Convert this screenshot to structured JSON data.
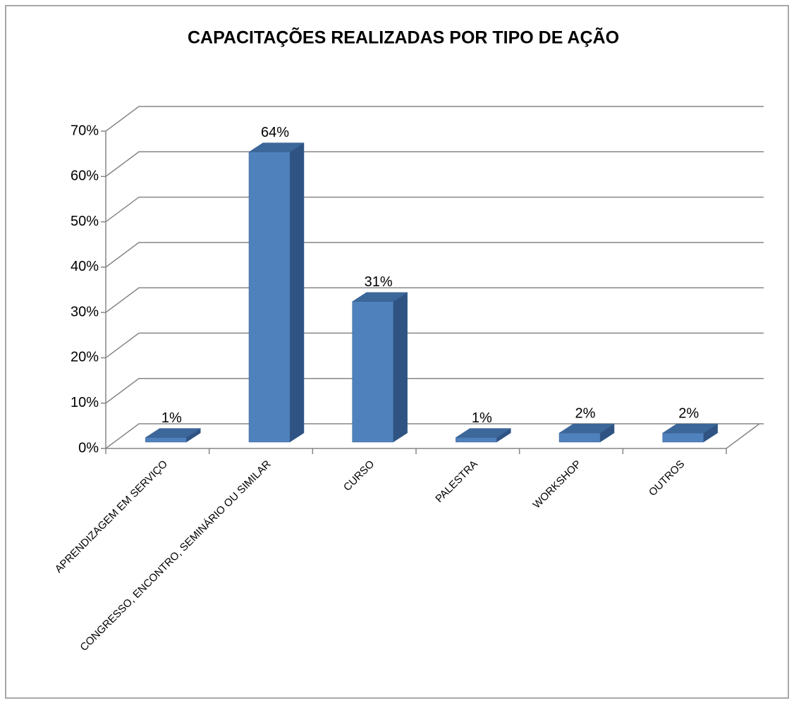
{
  "chart_data": {
    "type": "bar3d",
    "title": "CAPACITAÇÕES REALIZADAS POR TIPO DE AÇÃO",
    "categories": [
      "APRENDIZAGEM EM SERVIÇO",
      "CONGRESSO, ENCONTRO, SEMINÁRIO OU SIMILAR",
      "CURSO",
      "PALESTRA",
      "WORKSHOP",
      "OUTROS"
    ],
    "values": [
      1,
      64,
      31,
      1,
      2,
      2
    ],
    "value_labels": [
      "1%",
      "64%",
      "31%",
      "1%",
      "2%",
      "2%"
    ],
    "color": "#4f81bd",
    "ylim": [
      0,
      70
    ],
    "yticks": [
      {
        "value": 0,
        "label": "0%"
      },
      {
        "value": 10,
        "label": "10%"
      },
      {
        "value": 20,
        "label": "20%"
      },
      {
        "value": 30,
        "label": "30%"
      },
      {
        "value": 40,
        "label": "40%"
      },
      {
        "value": 50,
        "label": "50%"
      },
      {
        "value": 60,
        "label": "60%"
      },
      {
        "value": 70,
        "label": "70%"
      }
    ],
    "grid": true
  }
}
